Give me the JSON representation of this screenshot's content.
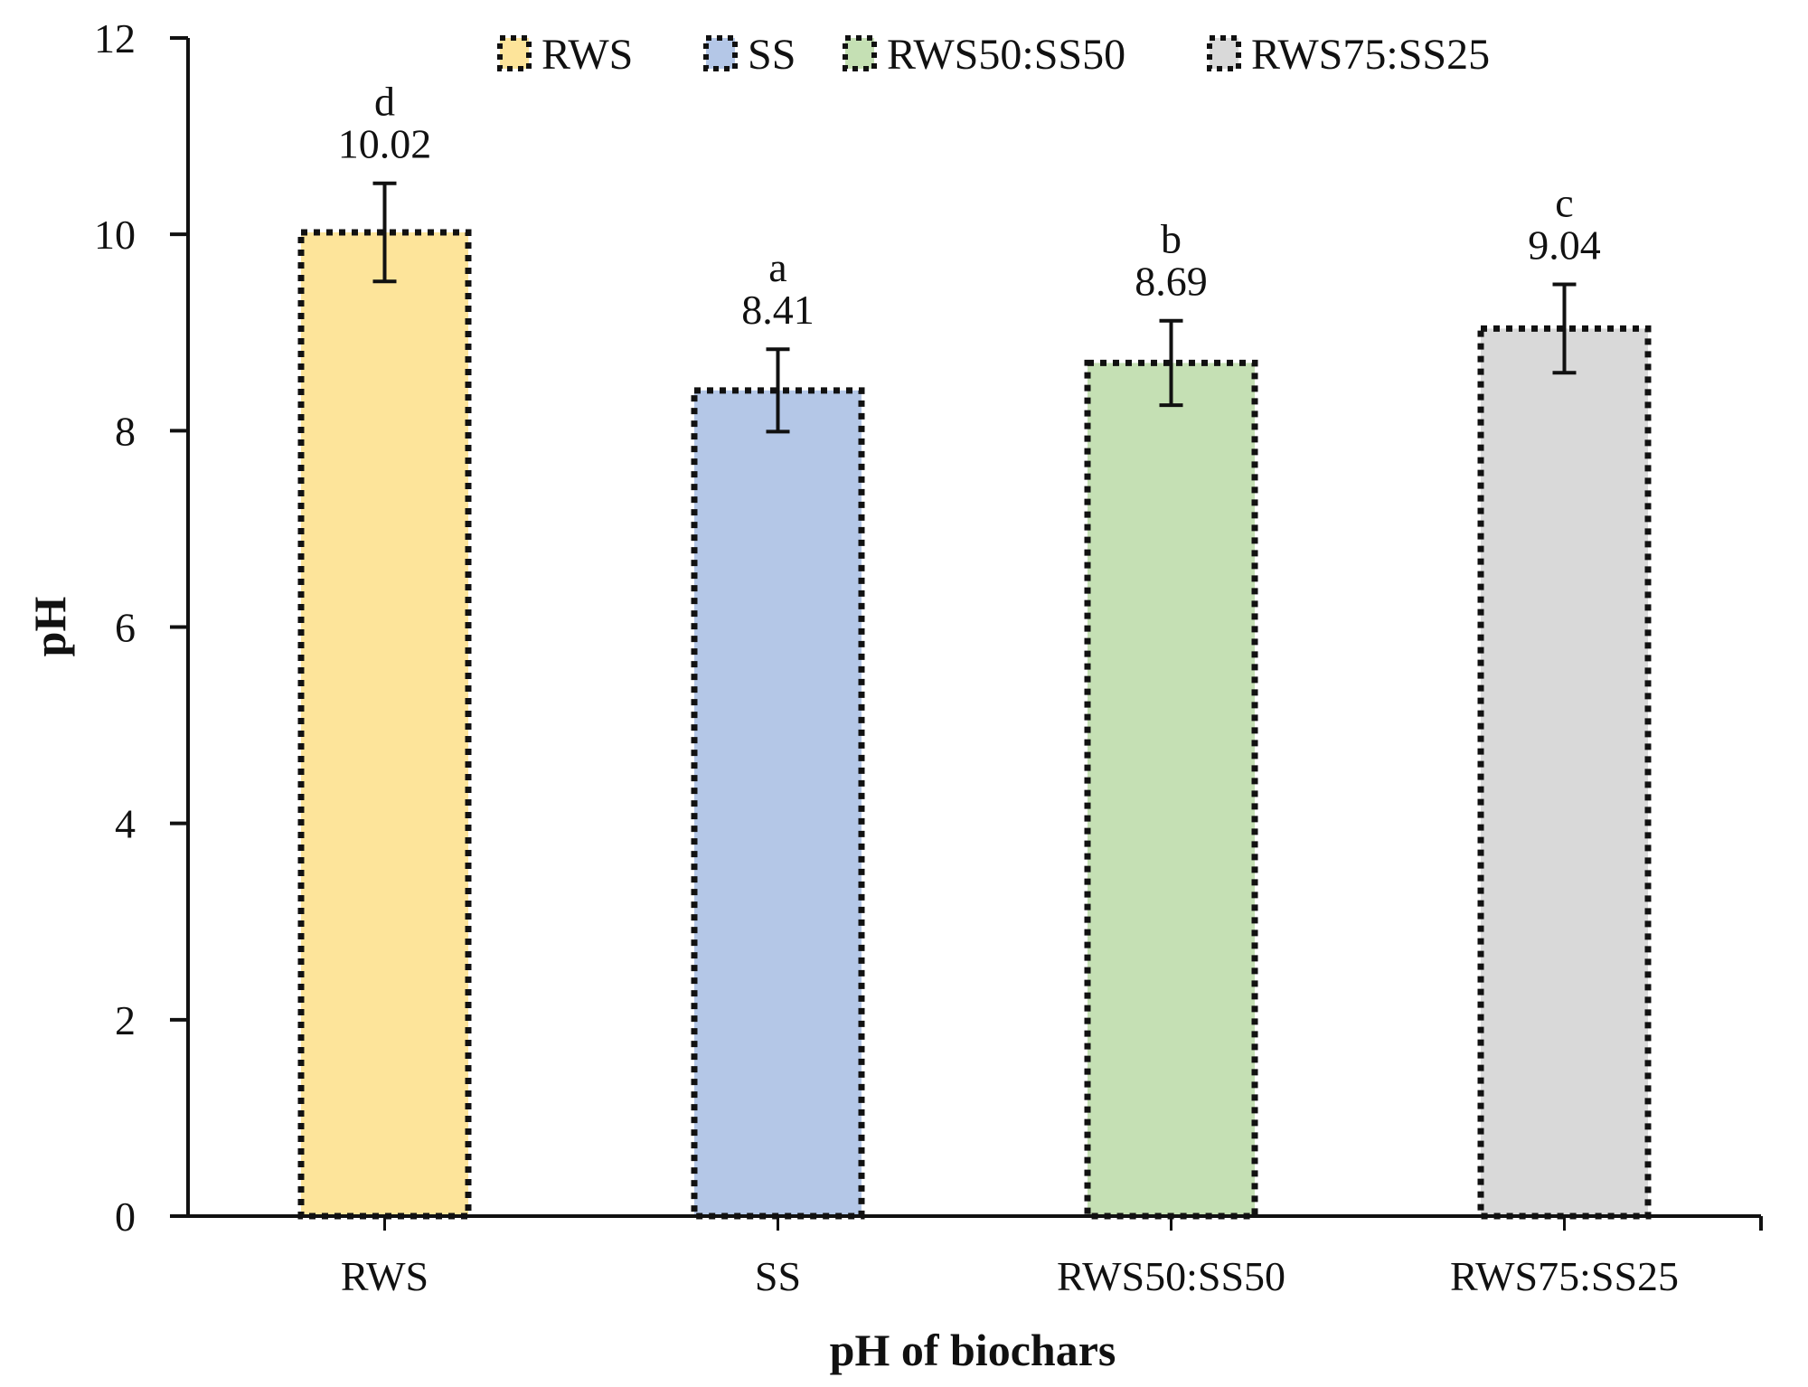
{
  "chart_data": {
    "type": "bar",
    "title": "",
    "xlabel": "pH of biochars",
    "ylabel": "pH",
    "ylim": [
      0,
      12
    ],
    "yticks": [
      0,
      2,
      4,
      6,
      8,
      10,
      12
    ],
    "ytick_labels": [
      "0",
      "2",
      "4",
      "6",
      "8",
      "10",
      "12"
    ],
    "categories": [
      "RWS",
      "SS",
      "RWS50:SS50",
      "RWS75:SS25"
    ],
    "values": [
      10.02,
      8.41,
      8.69,
      9.04
    ],
    "value_labels": [
      "10.02",
      "8.41",
      "8.69",
      "9.04"
    ],
    "error": [
      0.5,
      0.42,
      0.43,
      0.45
    ],
    "significance_letters": [
      "d",
      "a",
      "b",
      "c"
    ],
    "colors": [
      "#fde49a",
      "#b4c7e7",
      "#c5e0b4",
      "#d9d9d9"
    ],
    "bar_border": "dotted-black",
    "grid": false,
    "legend": {
      "position": "top-center",
      "entries": [
        "RWS",
        "SS",
        "RWS50:SS50",
        "RWS75:SS25"
      ]
    }
  }
}
